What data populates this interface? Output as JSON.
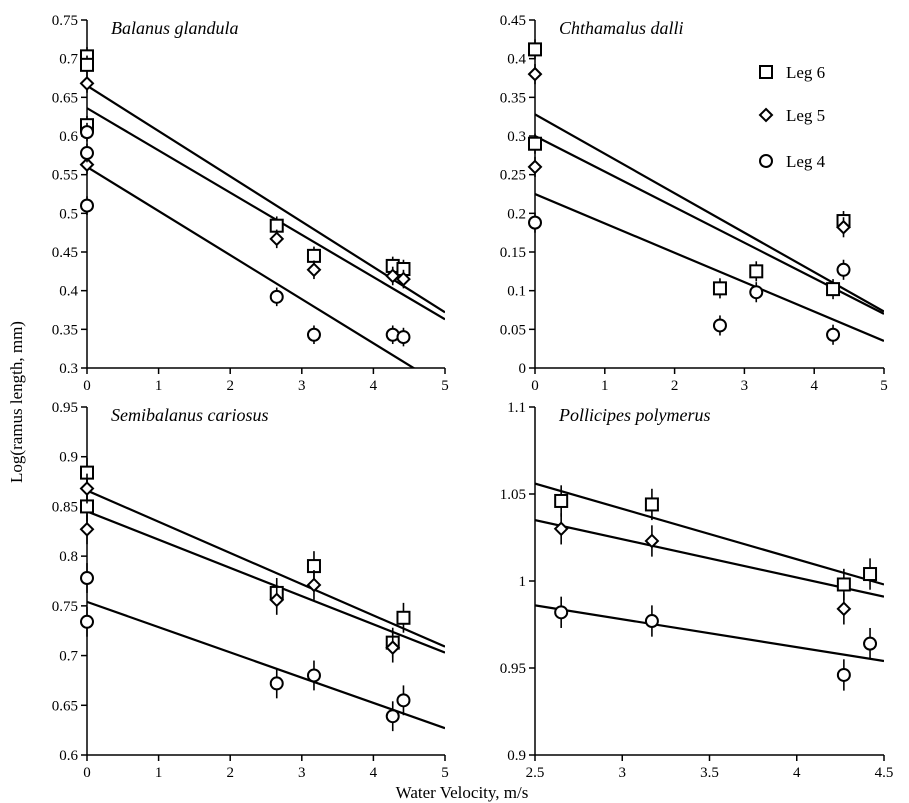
{
  "figure": {
    "xlabel": "Water Velocity, m/s",
    "ylabel": "Log(ramus length, mm)"
  },
  "legend": [
    {
      "label": "Leg 6",
      "marker": "square"
    },
    {
      "label": "Leg 5",
      "marker": "diamond"
    },
    {
      "label": "Leg 4",
      "marker": "circle"
    }
  ],
  "chart_data": [
    {
      "type": "scatter",
      "title": "Balanus glandula",
      "xlim": [
        0,
        5
      ],
      "ylim": [
        0.3,
        0.75
      ],
      "xticks": [
        0,
        1,
        2,
        3,
        4,
        5
      ],
      "xtick_labels": [
        "0",
        "1",
        "2",
        "3",
        "4",
        "5"
      ],
      "yticks": [
        0.3,
        0.35,
        0.4,
        0.45,
        0.5,
        0.55,
        0.6,
        0.65,
        0.7,
        0.75
      ],
      "ytick_labels": [
        "0.3",
        "0.35",
        "0.4",
        "0.45",
        "0.5",
        "0.55",
        "0.6",
        "0.65",
        "0.7",
        "0.75"
      ],
      "series": [
        {
          "name": "Leg 6",
          "marker": "square",
          "x": [
            0,
            0,
            0,
            2.65,
            3.17,
            4.27,
            4.42
          ],
          "y": [
            0.703,
            0.692,
            0.614,
            0.484,
            0.445,
            0.432,
            0.428
          ],
          "err": 0.012,
          "fit": [
            0.665,
            0.372
          ]
        },
        {
          "name": "Leg 5",
          "marker": "diamond",
          "x": [
            0,
            0,
            2.65,
            3.17,
            4.27,
            4.42
          ],
          "y": [
            0.668,
            0.563,
            0.467,
            0.427,
            0.419,
            0.415
          ],
          "err": 0.012,
          "fit": [
            0.636,
            0.363
          ]
        },
        {
          "name": "Leg 4",
          "marker": "circle",
          "x": [
            0,
            0,
            0,
            2.65,
            3.17,
            4.27,
            4.42
          ],
          "y": [
            0.605,
            0.578,
            0.51,
            0.392,
            0.343,
            0.343,
            0.34
          ],
          "err": 0.012,
          "fit": [
            0.56,
            0.275
          ]
        }
      ]
    },
    {
      "type": "scatter",
      "title": "Chthamalus dalli",
      "xlim": [
        0,
        5
      ],
      "ylim": [
        0,
        0.45
      ],
      "xticks": [
        0,
        1,
        2,
        3,
        4,
        5
      ],
      "xtick_labels": [
        "0",
        "1",
        "2",
        "3",
        "4",
        "5"
      ],
      "yticks": [
        0,
        0.05,
        0.1,
        0.15,
        0.2,
        0.25,
        0.3,
        0.35,
        0.4,
        0.45
      ],
      "ytick_labels": [
        "0",
        "0.05",
        "0.1",
        "0.15",
        "0.2",
        "0.25",
        "0.3",
        "0.35",
        "0.4",
        "0.45"
      ],
      "series": [
        {
          "name": "Leg 6",
          "marker": "square",
          "x": [
            0,
            0,
            2.65,
            3.17,
            4.27,
            4.42
          ],
          "y": [
            0.412,
            0.29,
            0.103,
            0.125,
            0.102,
            0.19
          ],
          "err": 0.013,
          "fit": [
            0.328,
            0.073
          ]
        },
        {
          "name": "Leg 5",
          "marker": "diamond",
          "x": [
            0,
            0,
            4.42
          ],
          "y": [
            0.38,
            0.26,
            0.182
          ],
          "err": 0.013,
          "fit": [
            0.3,
            0.07
          ]
        },
        {
          "name": "Leg 4",
          "marker": "circle",
          "x": [
            0,
            2.65,
            3.17,
            4.27,
            4.42
          ],
          "y": [
            0.188,
            0.055,
            0.098,
            0.043,
            0.127
          ],
          "err": 0.013,
          "fit": [
            0.225,
            0.035
          ]
        }
      ]
    },
    {
      "type": "scatter",
      "title": "Semibalanus cariosus",
      "xlim": [
        0,
        5
      ],
      "ylim": [
        0.6,
        0.95
      ],
      "xticks": [
        0,
        1,
        2,
        3,
        4,
        5
      ],
      "xtick_labels": [
        "0",
        "1",
        "2",
        "3",
        "4",
        "5"
      ],
      "yticks": [
        0.6,
        0.65,
        0.7,
        0.75,
        0.8,
        0.85,
        0.9,
        0.95
      ],
      "ytick_labels": [
        "0.6",
        "0.65",
        "0.7",
        "0.75",
        "0.8",
        "0.85",
        "0.9",
        "0.95"
      ],
      "series": [
        {
          "name": "Leg 6",
          "marker": "square",
          "x": [
            0,
            0,
            2.65,
            3.17,
            4.27,
            4.42
          ],
          "y": [
            0.884,
            0.85,
            0.763,
            0.79,
            0.713,
            0.738
          ],
          "err": 0.015,
          "fit": [
            0.866,
            0.709
          ]
        },
        {
          "name": "Leg 5",
          "marker": "diamond",
          "x": [
            0,
            0,
            2.65,
            3.17,
            4.27
          ],
          "y": [
            0.868,
            0.827,
            0.756,
            0.771,
            0.708
          ],
          "err": 0.015,
          "fit": [
            0.845,
            0.703
          ]
        },
        {
          "name": "Leg 4",
          "marker": "circle",
          "x": [
            0,
            0,
            2.65,
            3.17,
            4.27,
            4.42
          ],
          "y": [
            0.778,
            0.734,
            0.672,
            0.68,
            0.639,
            0.655
          ],
          "err": 0.015,
          "fit": [
            0.754,
            0.627
          ]
        }
      ]
    },
    {
      "type": "scatter",
      "title": "Pollicipes polymerus",
      "xlim": [
        2.5,
        4.5
      ],
      "ylim": [
        0.9,
        1.1
      ],
      "xticks": [
        2.5,
        3,
        3.5,
        4,
        4.5
      ],
      "xtick_labels": [
        "2.5",
        "3",
        "3.5",
        "4",
        "4.5"
      ],
      "yticks": [
        0.9,
        0.95,
        1,
        1.05,
        1.1
      ],
      "ytick_labels": [
        "0.9",
        "0.95",
        "1",
        "1.05",
        "1.1"
      ],
      "series": [
        {
          "name": "Leg 6",
          "marker": "square",
          "x": [
            2.65,
            3.17,
            4.27,
            4.42
          ],
          "y": [
            1.046,
            1.044,
            0.998,
            1.004
          ],
          "err": 0.009,
          "fit": [
            1.056,
            0.998
          ]
        },
        {
          "name": "Leg 5",
          "marker": "diamond",
          "x": [
            2.65,
            3.17,
            4.27
          ],
          "y": [
            1.03,
            1.023,
            0.984
          ],
          "err": 0.009,
          "fit": [
            1.035,
            0.991
          ]
        },
        {
          "name": "Leg 4",
          "marker": "circle",
          "x": [
            2.65,
            3.17,
            4.27,
            4.42
          ],
          "y": [
            0.982,
            0.977,
            0.946,
            0.964
          ],
          "err": 0.009,
          "fit": [
            0.986,
            0.954
          ]
        }
      ]
    }
  ]
}
